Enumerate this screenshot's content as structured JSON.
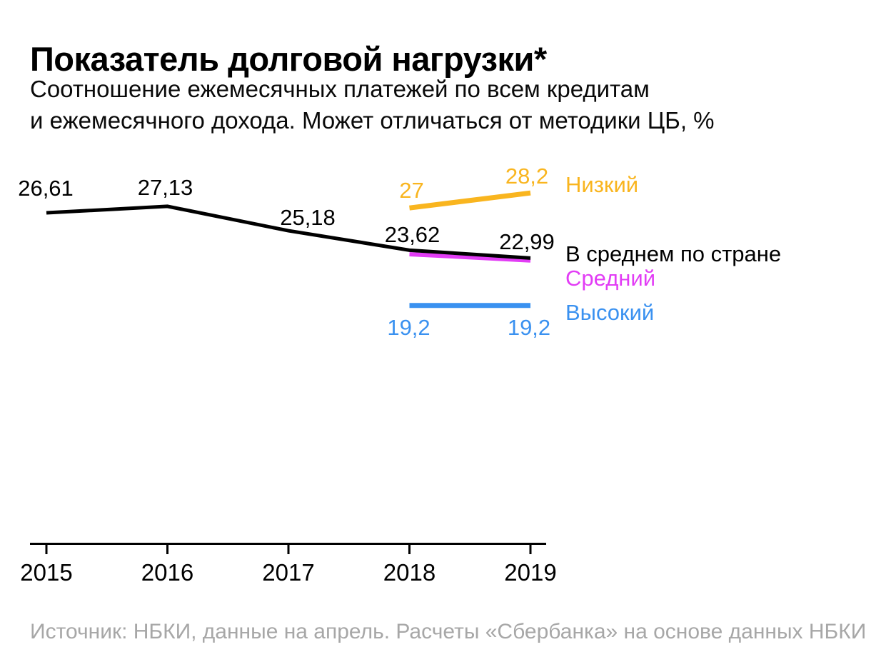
{
  "header": {
    "title": "Показатель долговой нагрузки*",
    "subtitle_line1": "Соотношение ежемесячных платежей по всем кредитам",
    "subtitle_line2": "и ежемесячного дохода. Может отличаться от методики ЦБ, %"
  },
  "footer": {
    "source": "Источник: НБКИ, данные на апрель. Расчеты «Сбербанка» на основе данных НБКИ"
  },
  "colors": {
    "average": "#000000",
    "low": "#F9B51F",
    "medium": "#E23DF5",
    "high": "#3A91F0",
    "axis": "#000000",
    "source_text": "#A7A7A7",
    "background": "#FFFFFF"
  },
  "chart_data": {
    "type": "line",
    "title": "Показатель долговой нагрузки*",
    "subtitle": "Соотношение ежемесячных платежей по всем кредитам и ежемесячного дохода. Может отличаться от методики ЦБ, %",
    "xlabel": "",
    "ylabel": "%",
    "x": [
      2015,
      2016,
      2017,
      2018,
      2019
    ],
    "x_tick_labels": [
      "2015",
      "2016",
      "2017",
      "2018",
      "2019"
    ],
    "grid": false,
    "legend_position": "right",
    "series": [
      {
        "name": "В среднем по стране",
        "color": "#000000",
        "x": [
          2015,
          2016,
          2017,
          2018,
          2019
        ],
        "values": [
          26.61,
          27.13,
          25.18,
          23.62,
          22.99
        ],
        "labels": [
          "26,61",
          "27,13",
          "25,18",
          "23,62",
          "22,99"
        ]
      },
      {
        "name": "Низкий",
        "color": "#F9B51F",
        "x": [
          2018,
          2019
        ],
        "values": [
          27,
          28.2
        ],
        "labels": [
          "27",
          "28,2"
        ]
      },
      {
        "name": "Средний",
        "color": "#E23DF5",
        "x": [
          2018,
          2019
        ],
        "values": [
          23.3,
          22.8
        ],
        "labels": []
      },
      {
        "name": "Высокий",
        "color": "#3A91F0",
        "x": [
          2018,
          2019
        ],
        "values": [
          19.2,
          19.2
        ],
        "labels": [
          "19,2",
          "19,2"
        ]
      }
    ]
  }
}
